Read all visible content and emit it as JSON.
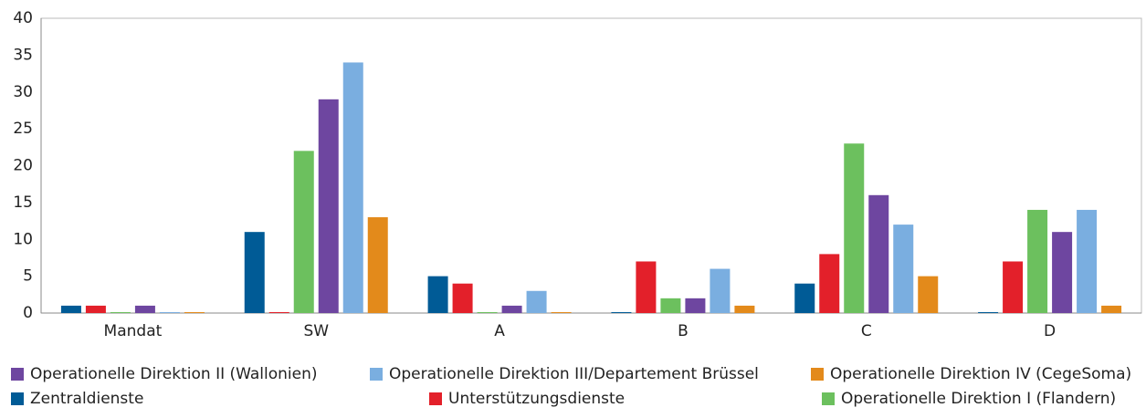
{
  "chart_data": {
    "type": "bar",
    "categories": [
      "Mandat",
      "SW",
      "A",
      "B",
      "C",
      "D"
    ],
    "series": [
      {
        "name": "Zentraldienste",
        "color": "#005b96",
        "values": [
          1,
          11,
          5,
          0,
          4,
          0
        ]
      },
      {
        "name": "Unterstützungsdienste",
        "color": "#e3202a",
        "values": [
          1,
          0,
          4,
          7,
          8,
          7
        ]
      },
      {
        "name": "Operationelle Direktion I (Flandern)",
        "color": "#6cc05e",
        "values": [
          0,
          22,
          0,
          2,
          23,
          14
        ]
      },
      {
        "name": "Operationelle Direktion II (Wallonien)",
        "color": "#6e46a0",
        "values": [
          1,
          29,
          1,
          2,
          16,
          11
        ]
      },
      {
        "name": "Operationelle Direktion III/Departement Brüssel",
        "color": "#7aaee0",
        "values": [
          0,
          34,
          3,
          6,
          12,
          14
        ]
      },
      {
        "name": "Operationelle Direktion IV (CegeSoma)",
        "color": "#e38a1b",
        "values": [
          0,
          13,
          0,
          1,
          5,
          1
        ]
      }
    ],
    "ylim": [
      0,
      40
    ],
    "yticks": [
      0,
      5,
      10,
      15,
      20,
      25,
      30,
      35,
      40
    ],
    "grid": false
  }
}
